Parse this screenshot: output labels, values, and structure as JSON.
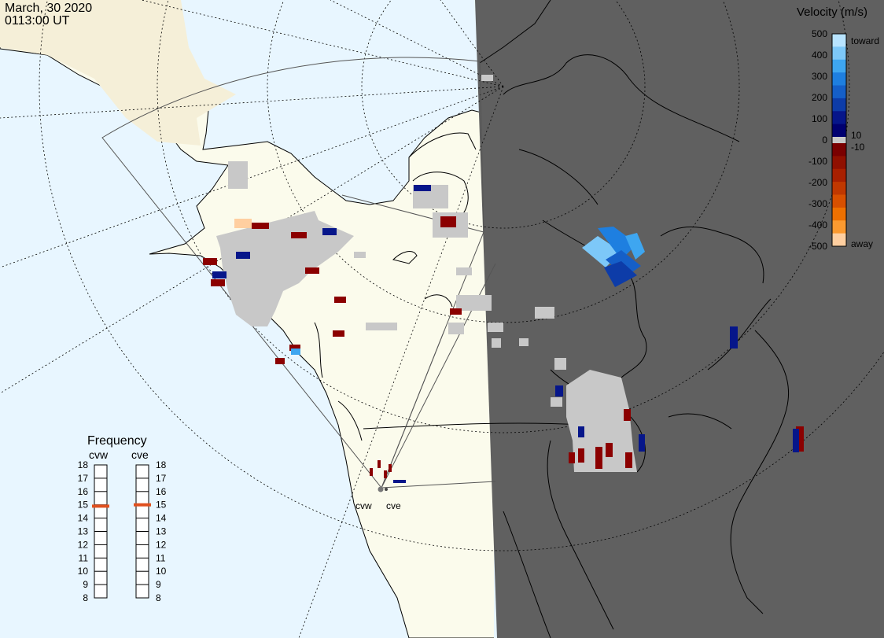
{
  "header": {
    "date": "March, 30 2020",
    "time": "0113:00 UT"
  },
  "velocity_scale": {
    "title": "Velocity (m/s)",
    "ticks": [
      "500",
      "400",
      "300",
      "200",
      "100",
      "0",
      "-100",
      "-200",
      "-300",
      "-400",
      "-500"
    ],
    "label_toward": "toward",
    "label_away": "away",
    "label_pos10": "10",
    "label_neg10": "-10",
    "colors_toward": [
      "#b8e4ff",
      "#7dc8f8",
      "#3ea6f0",
      "#1e7fe0",
      "#155fc8",
      "#0d3ca8",
      "#06168a",
      "#000070"
    ],
    "colors_away": [
      "#7a0000",
      "#901000",
      "#a82000",
      "#c03800",
      "#d85000",
      "#ee7000",
      "#fb9a30",
      "#ffcfa0"
    ]
  },
  "frequency_panel": {
    "title": "Frequency",
    "radars": [
      {
        "name": "cvw",
        "marker_mhz": 14.9
      },
      {
        "name": "cve",
        "marker_mhz": 15.0
      }
    ],
    "scale_labels": [
      "18",
      "17",
      "16",
      "15",
      "14",
      "13",
      "12",
      "11",
      "10",
      "9",
      "8"
    ]
  },
  "radar_sites": [
    {
      "name": "cvw"
    },
    {
      "name": "cve"
    }
  ],
  "colors": {
    "ocean": "#e8f6ff",
    "land_day": "#fbfbec",
    "night": "#606060",
    "ground_scatter": "#c8c8c8",
    "marker": "#e0501e"
  }
}
